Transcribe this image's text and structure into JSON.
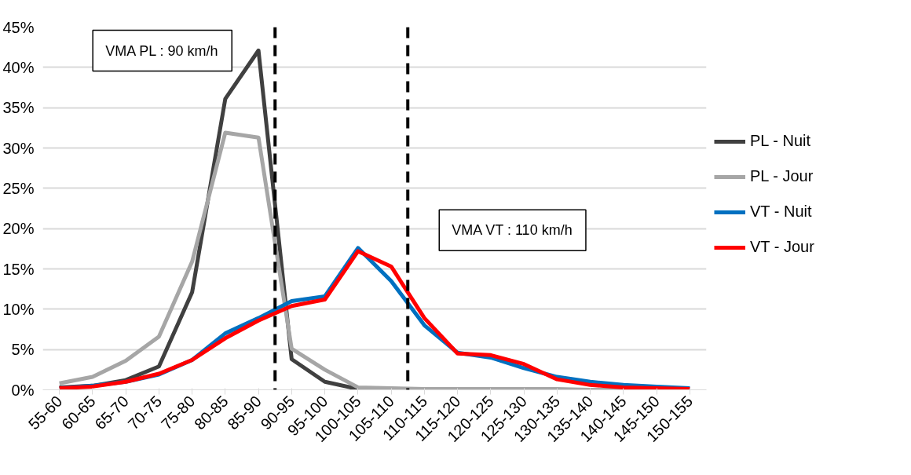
{
  "chart_data": {
    "type": "line",
    "categories": [
      "55-60",
      "60-65",
      "65-70",
      "70-75",
      "75-80",
      "80-85",
      "85-90",
      "90-95",
      "95-100",
      "100-105",
      "105-110",
      "110-115",
      "115-120",
      "120-125",
      "125-130",
      "130-135",
      "135-140",
      "140-145",
      "145-150",
      "150-155"
    ],
    "ylim": [
      0,
      45
    ],
    "yticks": [
      {
        "value": 0,
        "label": "0%"
      },
      {
        "value": 5,
        "label": "5%"
      },
      {
        "value": 10,
        "label": "10%"
      },
      {
        "value": 15,
        "label": "15%"
      },
      {
        "value": 20,
        "label": "20%"
      },
      {
        "value": 25,
        "label": "25%"
      },
      {
        "value": 30,
        "label": "30%"
      },
      {
        "value": 35,
        "label": "35%"
      },
      {
        "value": 40,
        "label": "40%"
      },
      {
        "value": 45,
        "label": "45%"
      }
    ],
    "grid": "y",
    "legend": "right",
    "line_style": "solid",
    "series": [
      {
        "name": "PL - Nuit",
        "color": "#404040",
        "values": [
          0.3,
          0.5,
          1.2,
          2.9,
          12.1,
          36.1,
          42.1,
          3.8,
          1.0,
          0.1,
          0,
          0,
          0,
          0,
          0,
          0,
          0,
          0,
          0,
          0
        ]
      },
      {
        "name": "PL - Jour",
        "color": "#a6a6a6",
        "values": [
          0.8,
          1.6,
          3.6,
          6.6,
          15.9,
          31.9,
          31.3,
          5.1,
          2.5,
          0.3,
          0.2,
          0.1,
          0.1,
          0.1,
          0.1,
          0.1,
          0,
          0,
          0,
          0
        ]
      },
      {
        "name": "VT - Nuit",
        "color": "#0070c0",
        "values": [
          0.2,
          0.5,
          1.0,
          1.9,
          3.7,
          7.0,
          8.9,
          11.0,
          11.6,
          17.6,
          13.5,
          8.0,
          4.6,
          4.0,
          2.7,
          1.6,
          1.0,
          0.6,
          0.4,
          0.2
        ]
      },
      {
        "name": "VT - Jour",
        "color": "#ff0000",
        "values": [
          0.2,
          0.4,
          1.0,
          2.0,
          3.7,
          6.4,
          8.6,
          10.4,
          11.2,
          17.2,
          15.3,
          8.9,
          4.5,
          4.3,
          3.2,
          1.3,
          0.6,
          0.3,
          0.2,
          0.1
        ]
      }
    ],
    "annotations": [
      "VMA PL : 90 km/h",
      "VMA VT : 110 km/h"
    ]
  }
}
